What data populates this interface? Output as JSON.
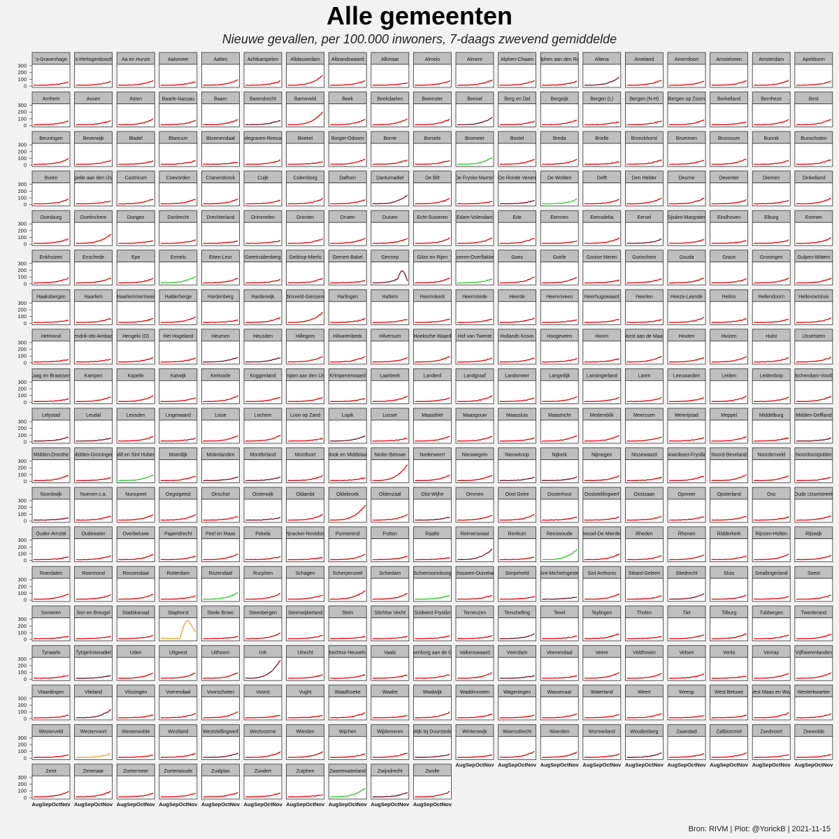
{
  "title": "Alle gemeenten",
  "subtitle": "Nieuwe gevallen, per 100.000 inwoners, 7-daags zwevend gemiddelde",
  "caption": "Bron: RIVM | Plot: @YorickB |  2021-11-15",
  "colors": {
    "default": "#e8000b",
    "dark": "#7a1020",
    "green": "#22cc22",
    "orange": "#f0a020",
    "panel_border": "#333333",
    "strip_fill": "#bfbfbf"
  },
  "chart_data": {
    "type": "line",
    "facets": "small multiples, 20 columns, one panel per municipality",
    "x_tick_labels": [
      "Aug",
      "Sep",
      "Oct",
      "Nov"
    ],
    "y_tick_labels": [
      "300",
      "200",
      "100",
      "0"
    ],
    "ylim": [
      0,
      300
    ],
    "municipalities": [
      "'s-Gravenhage",
      "'s-Hertogenbosch",
      "Aa en Hunze",
      "Aalsmeer",
      "Aalten",
      "Achtkarspelen",
      "Alblasserdam",
      "Albrandswaard",
      "Alkmaar",
      "Almelo",
      "Almere",
      "Alphen-Chaam",
      "Alphen aan den Rijn",
      "Altena",
      "Ameland",
      "Amersfoort",
      "Amstelveen",
      "Amsterdam",
      "Apeldoorn",
      "Arnhem",
      "Assen",
      "Asten",
      "Baarle-Nassau",
      "Baarn",
      "Barendrecht",
      "Barneveld",
      "Beek",
      "Beekdaelen",
      "Beemster",
      "Beesel",
      "Berg en Dal",
      "Bergeijk",
      "Bergen (L)",
      "Bergen (N-H)",
      "Bergen op Zoom",
      "Berkelland",
      "Bernheze",
      "Best",
      "Beuningen",
      "Beverwijk",
      "Bladel",
      "Blaricum",
      "Bloemendaal",
      "Bodegraven-Reeuwijk",
      "Boekel",
      "Borger-Odoorn",
      "Borne",
      "Borsele",
      "Boxmeer",
      "Boxtel",
      "Breda",
      "Brielle",
      "Bronckhorst",
      "Brummen",
      "Brunssum",
      "Bunnik",
      "Bunschoten",
      "Buren",
      "Capelle aan den IJssel",
      "Castricum",
      "Coevorden",
      "Cranendonck",
      "Cuijk",
      "Culemborg",
      "Dalfsen",
      "Dantumadiel",
      "De Bilt",
      "De Fryske Marren",
      "De Ronde Venen",
      "De Wolden",
      "Delft",
      "Den Helder",
      "Deurne",
      "Deventer",
      "Diemen",
      "Dinkelland",
      "Doesburg",
      "Doetinchem",
      "Dongen",
      "Dordrecht",
      "Drechterland",
      "Drimmelen",
      "Dronten",
      "Druten",
      "Duiven",
      "Echt-Susteren",
      "Edam-Volendam",
      "Ede",
      "Eemnes",
      "Eemsdelta",
      "Eersel",
      "Eijsden-Margraten",
      "Eindhoven",
      "Elburg",
      "Emmen",
      "Enkhuizen",
      "Enschede",
      "Epe",
      "Ermelo",
      "Etten-Leur",
      "Geertruidenberg",
      "Geldrop-Mierlo",
      "Gemert-Bakel",
      "Gennep",
      "Gilze en Rijen",
      "Goeree-Overflakkee",
      "Goes",
      "Goirle",
      "Gooise Meren",
      "Gorinchem",
      "Gouda",
      "Grave",
      "Groningen",
      "Gulpen-Wittem",
      "Haaksbergen",
      "Haarlem",
      "Haarlemmermeer",
      "Halderberge",
      "Hardenberg",
      "Harderwijk",
      "Hardinxveld-Giessendam",
      "Harlingen",
      "Hattem",
      "Heemskerk",
      "Heemstede",
      "Heerde",
      "Heerenveen",
      "Heerhugowaard",
      "Heerlen",
      "Heeze-Leende",
      "Heiloo",
      "Hellendoorn",
      "Hellevoetsluis",
      "Helmond",
      "Hendrik-Ido-Ambacht",
      "Hengelo (O)",
      "Het Hogeland",
      "Heumen",
      "Heusden",
      "Hillegom",
      "Hilvarenbeek",
      "Hilversum",
      "Hoeksche Waard",
      "Hof van Twente",
      "Hollands Kroon",
      "Hoogeveen",
      "Hoorn",
      "Horst aan de Maas",
      "Houten",
      "Huizen",
      "Hulst",
      "IJsselstein",
      "Kaag en Braassem",
      "Kampen",
      "Kapelle",
      "Katwijk",
      "Kerkrade",
      "Koggenland",
      "Krimpen aan den IJssel",
      "Krimpenerwaard",
      "Laarbeek",
      "Landerd",
      "Landgraaf",
      "Landsmeer",
      "Langedijk",
      "Lansingerland",
      "Laren",
      "Leeuwarden",
      "Leiden",
      "Leiderdorp",
      "Leidschendam-Voorburg",
      "Lelystad",
      "Leudal",
      "Leusden",
      "Lingewaard",
      "Lisse",
      "Lochem",
      "Loon op Zand",
      "Lopik",
      "Losser",
      "Maasdriel",
      "Maasgouw",
      "Maassluis",
      "Maastricht",
      "Medemblik",
      "Meerssen",
      "Meierijstad",
      "Meppel",
      "Middelburg",
      "Midden-Delfland",
      "Midden-Drenthe",
      "Midden-Groningen",
      "Mill en Sint Hubert",
      "Moerdijk",
      "Molenlanden",
      "Montferland",
      "Montfoort",
      "Mook en Middelaar",
      "Neder-Betuwe",
      "Nederweert",
      "Nieuwegein",
      "Nieuwkoop",
      "Nijkerk",
      "Nijmegen",
      "Nissewaard",
      "Noardeast-Fryslân",
      "Noord-Beveland",
      "Noordenveld",
      "Noordoostpolder",
      "Noordwijk",
      "Nuenen c.a.",
      "Nunspeet",
      "Oegstgeest",
      "Oirschot",
      "Oisterwijk",
      "Oldambt",
      "Oldebroek",
      "Oldenzaal",
      "Olst-Wijhe",
      "Ommen",
      "Oost Gelre",
      "Oosterhout",
      "Ooststellingwerf",
      "Oostzaan",
      "Opmeer",
      "Opsterland",
      "Oss",
      "Oude IJsselstreek",
      "Ouder-Amstel",
      "Oudewater",
      "Overbetuwe",
      "Papendrecht",
      "Peel en Maas",
      "Pekela",
      "Pijnacker-Nootdorp",
      "Purmerend",
      "Putten",
      "Raalte",
      "Reimerswaal",
      "Renkum",
      "Renswoude",
      "Reusel-De Mierden",
      "Rheden",
      "Rhenen",
      "Ridderkerk",
      "Rijssen-Holten",
      "Rijswijk",
      "Roerdalen",
      "Roermond",
      "Roosendaal",
      "Rotterdam",
      "Rozendaal",
      "Rucphen",
      "Schagen",
      "Scherpenzeel",
      "Schiedam",
      "Schiermonnikoog",
      "Schouwen-Duiveland",
      "Simpelveld",
      "Sint-Michielsgestel",
      "Sint Anthonis",
      "Sittard-Geleen",
      "Sliedrecht",
      "Sluis",
      "Smallingerland",
      "Soest",
      "Someren",
      "Son en Breugel",
      "Stadskanaal",
      "Staphorst",
      "Stede Broec",
      "Steenbergen",
      "Steenwijkerland",
      "Stein",
      "Stichtse Vecht",
      "Súdwest Fryslân",
      "Terneuzen",
      "Terschelling",
      "Texel",
      "Teylingen",
      "Tholen",
      "Tiel",
      "Tilburg",
      "Tubbergen",
      "Twenterand",
      "Tynaarlo",
      "Tytsjerksteradiel",
      "Uden",
      "Uitgeest",
      "Uithoorn",
      "Urk",
      "Utrecht",
      "Utrechtse Heuvelrug",
      "Vaals",
      "Valkenburg aan de Geul",
      "Valkenswaard",
      "Veendam",
      "Veenendaal",
      "Veere",
      "Veldhoven",
      "Velsen",
      "Venlo",
      "Venray",
      "Vijfheerenlanden",
      "Vlaardingen",
      "Vlieland",
      "Vlissingen",
      "Voerendaal",
      "Voorschoten",
      "Voorst",
      "Vught",
      "Waadhoeke",
      "Waalre",
      "Waalwijk",
      "Waddinxveen",
      "Wageningen",
      "Wassenaar",
      "Waterland",
      "Weert",
      "Weesp",
      "West Betuwe",
      "West Maas en Waal",
      "Westerkwartier",
      "Westerveld",
      "Westervoort",
      "Westerwolde",
      "Westland",
      "Weststellingwerf",
      "Westvoorne",
      "Wierden",
      "Wijchen",
      "Wijdemeren",
      "Wijk bij Duurstede",
      "Winterswijk",
      "Woensdrecht",
      "Woerden",
      "Wormerland",
      "Woudenberg",
      "Zaanstad",
      "Zaltbommel",
      "Zandvoort",
      "Zeewolde",
      "Zeist",
      "Zevenaar",
      "Zoetermeer",
      "Zoeterwoude",
      "Zuidplas",
      "Zundert",
      "Zutphen",
      "Zwartewaterland",
      "Zwijndrecht",
      "Zwolle"
    ],
    "approx_latest_value": {
      "'s-Gravenhage": 60,
      "Alblasserdam": 160,
      "Altena": 130,
      "Barneveld": 200,
      "Beesel": 120,
      "Boxmeer": 110,
      "Dantumadiel": 140,
      "De Wolden": 80,
      "Doetinchem": 150,
      "Ermelo": 110,
      "Gennep": 180,
      "Goeree-Overflakkee": 70,
      "Hardinxveld-Giessendam": 160,
      "Neder-Betuwe": 250,
      "Mill en Sint Hubert": 100,
      "Oldebroek": 230,
      "Reimerswaal": 170,
      "Renswoude": 160,
      "Rozendaal": 110,
      "Scherpenzeel": 140,
      "Staphorst": 110,
      "Urk": 280,
      "Vlieland": 130,
      "Zwartewaterland": 140
    }
  }
}
